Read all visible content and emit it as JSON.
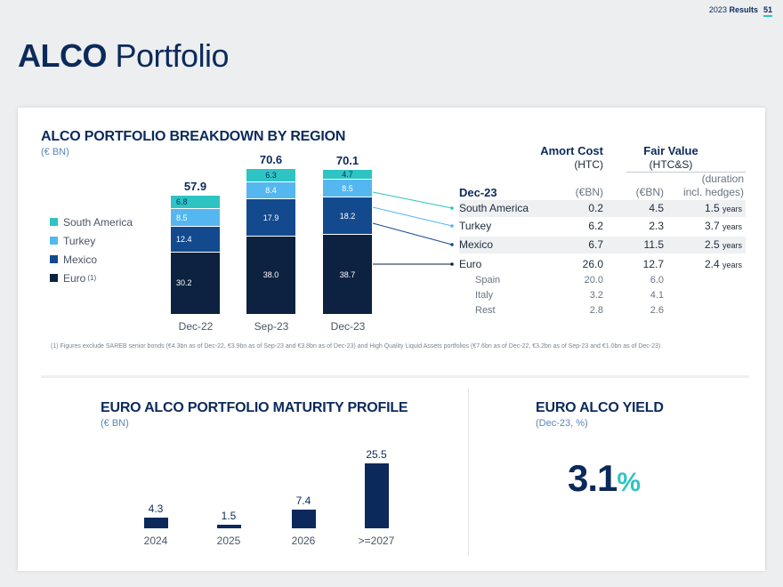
{
  "header": {
    "year": "2023",
    "results_label": "Results",
    "page_number": "51"
  },
  "title": {
    "bold": "ALCO",
    "rest": "Portfolio"
  },
  "breakdown": {
    "heading": "ALCO PORTFOLIO BREAKDOWN BY REGION",
    "unit": "(€ BN)",
    "legend": [
      {
        "label": "South America",
        "color": "#2ec4c4"
      },
      {
        "label": "Turkey",
        "color": "#55b7ef"
      },
      {
        "label": "Mexico",
        "color": "#134a8e"
      },
      {
        "label": "Euro",
        "color": "#0c2240",
        "note": "(1)"
      }
    ],
    "footnote": "(1) Figures exclude SAREB senior bonds (€4.3bn as of Dec-22, €3.9bn as of Sep-23 and €3.8bn as of Dec-23) and High Quality Liquid Assets portfolios (€7.6bn as of Dec-22, €3.2bn as of Sep-23 and €1.0bn as of Dec-23)"
  },
  "chart_data": [
    {
      "type": "bar",
      "stacked": true,
      "title": "ALCO PORTFOLIO BREAKDOWN BY REGION",
      "ylabel": "(€ BN)",
      "categories": [
        "Dec-22",
        "Sep-23",
        "Dec-23"
      ],
      "totals": [
        "57.9",
        "70.6",
        "70.1"
      ],
      "series": [
        {
          "name": "Euro",
          "values": [
            30.2,
            38.0,
            38.7
          ],
          "labels": [
            "30.2",
            "38.0",
            "38.7"
          ]
        },
        {
          "name": "Mexico",
          "values": [
            12.4,
            17.9,
            18.2
          ],
          "labels": [
            "12.4",
            "17.9",
            "18.2"
          ]
        },
        {
          "name": "Turkey",
          "values": [
            8.5,
            8.4,
            8.5
          ],
          "labels": [
            "8.5",
            "8.4",
            "8.5"
          ]
        },
        {
          "name": "South America",
          "values": [
            6.8,
            6.3,
            4.7
          ],
          "labels": [
            "6.8",
            "6.3",
            "4.7"
          ]
        }
      ]
    },
    {
      "type": "bar",
      "title": "EURO ALCO PORTFOLIO MATURITY PROFILE",
      "ylabel": "(€ BN)",
      "categories": [
        "2024",
        "2025",
        "2026",
        ">=2027"
      ],
      "values": [
        4.3,
        1.5,
        7.4,
        25.5
      ],
      "labels": [
        "4.3",
        "1.5",
        "7.4",
        "25.5"
      ]
    }
  ],
  "table": {
    "amort_cost": "Amort Cost",
    "htc": "(HTC)",
    "fair_value": "Fair Value",
    "htcs": "(HTC&S)",
    "duration": "(duration",
    "incl_hedges": "incl. hedges)",
    "period": "Dec-23",
    "unit1": "(€BN)",
    "unit2": "(€BN)",
    "rows": [
      {
        "name": "South America",
        "ac": "0.2",
        "fv": "4.5",
        "dur": "1.5",
        "dur_unit": "years"
      },
      {
        "name": "Turkey",
        "ac": "6.2",
        "fv": "2.3",
        "dur": "3.7",
        "dur_unit": "years"
      },
      {
        "name": "Mexico",
        "ac": "6.7",
        "fv": "11.5",
        "dur": "2.5",
        "dur_unit": "years"
      },
      {
        "name": "Euro",
        "ac": "26.0",
        "fv": "12.7",
        "dur": "2.4",
        "dur_unit": "years"
      }
    ],
    "sub_rows": [
      {
        "name": "Spain",
        "ac": "20.0",
        "fv": "6.0"
      },
      {
        "name": "Italy",
        "ac": "3.2",
        "fv": "4.1"
      },
      {
        "name": "Rest",
        "ac": "2.8",
        "fv": "2.6"
      }
    ]
  },
  "maturity": {
    "heading": "EURO ALCO PORTFOLIO MATURITY PROFILE",
    "unit": "(€ BN)"
  },
  "yield": {
    "heading": "EURO ALCO YIELD",
    "sub": "(Dec-23, %)",
    "value": "3.1",
    "suffix": "%"
  }
}
